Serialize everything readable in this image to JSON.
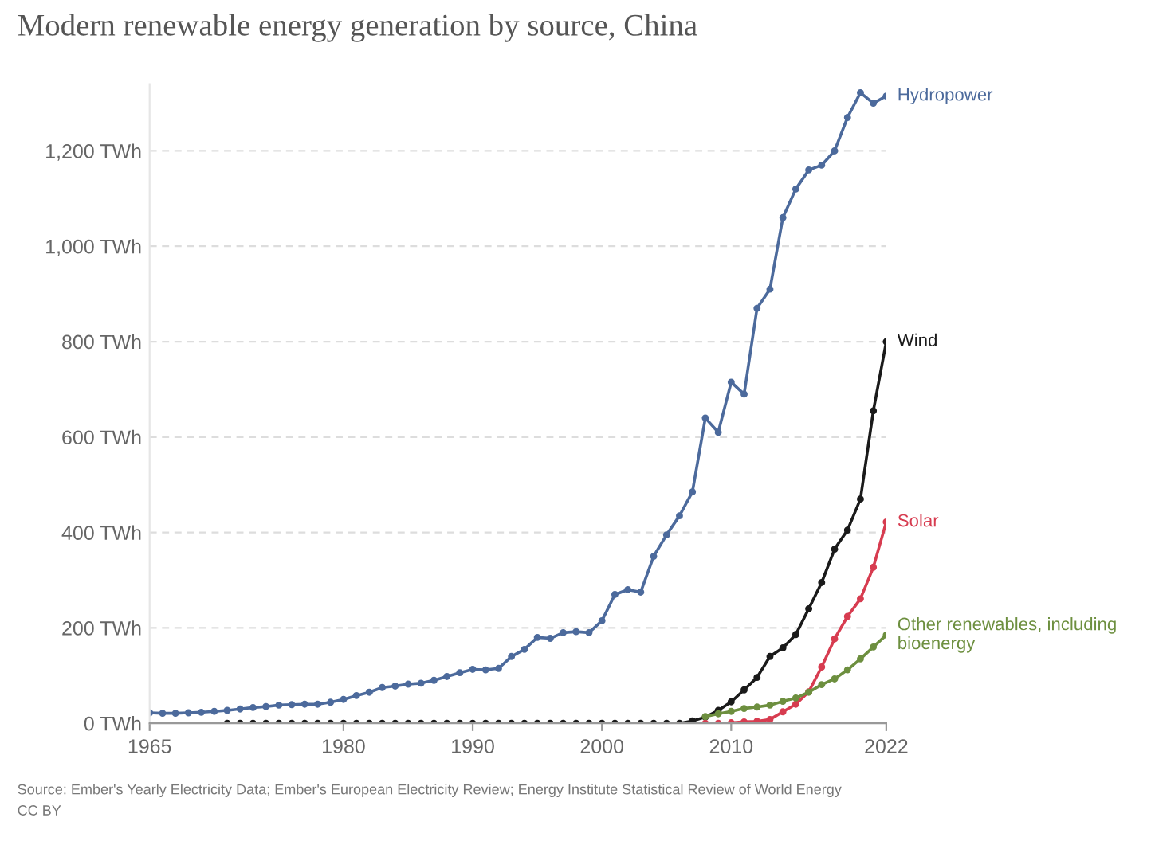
{
  "chart_data": {
    "type": "line",
    "title": "Modern renewable energy generation by source, China",
    "x": [
      1965,
      1966,
      1967,
      1968,
      1969,
      1970,
      1971,
      1972,
      1973,
      1974,
      1975,
      1976,
      1977,
      1978,
      1979,
      1980,
      1981,
      1982,
      1983,
      1984,
      1985,
      1986,
      1987,
      1988,
      1989,
      1990,
      1991,
      1992,
      1993,
      1994,
      1995,
      1996,
      1997,
      1998,
      1999,
      2000,
      2001,
      2002,
      2003,
      2004,
      2005,
      2006,
      2007,
      2008,
      2009,
      2010,
      2011,
      2012,
      2013,
      2014,
      2015,
      2016,
      2017,
      2018,
      2019,
      2020,
      2021,
      2022
    ],
    "series": [
      {
        "name": "Hydropower",
        "color": "#4c6a9c",
        "values": [
          22,
          21,
          21,
          22,
          23,
          25,
          27,
          30,
          33,
          35,
          38,
          39,
          40,
          40,
          44,
          50,
          58,
          65,
          75,
          78,
          82,
          84,
          90,
          98,
          106,
          113,
          112,
          115,
          140,
          155,
          180,
          178,
          190,
          192,
          190,
          215,
          270,
          280,
          275,
          350,
          395,
          435,
          485,
          640,
          610,
          715,
          690,
          870,
          910,
          1060,
          1120,
          1160,
          1170,
          1200,
          1270,
          1322,
          1300,
          1315
        ]
      },
      {
        "name": "Wind",
        "color": "#1a1a1a",
        "x": [
          1971,
          1972,
          1973,
          1974,
          1975,
          1976,
          1977,
          1978,
          1979,
          1980,
          1981,
          1982,
          1983,
          1984,
          1985,
          1986,
          1987,
          1988,
          1989,
          1990,
          1991,
          1992,
          1993,
          1994,
          1995,
          1996,
          1997,
          1998,
          1999,
          2000,
          2001,
          2002,
          2003,
          2004,
          2005,
          2006,
          2007,
          2008,
          2009,
          2010,
          2011,
          2012,
          2013,
          2014,
          2015,
          2016,
          2017,
          2018,
          2019,
          2020,
          2021,
          2022
        ],
        "values": [
          0,
          0,
          0,
          0,
          0,
          0,
          0,
          0,
          0,
          0,
          0,
          0,
          0,
          0,
          0,
          0,
          0,
          0,
          0,
          0,
          0,
          0,
          0,
          0,
          0,
          0,
          0,
          0,
          0,
          0,
          0,
          0,
          0,
          0,
          0,
          0,
          5,
          13,
          27,
          45,
          70,
          96,
          140,
          158,
          186,
          240,
          295,
          365,
          405,
          470,
          655,
          800
        ]
      },
      {
        "name": "Solar",
        "color": "#d73c50",
        "x": [
          2008,
          2009,
          2010,
          2011,
          2012,
          2013,
          2014,
          2015,
          2016,
          2017,
          2018,
          2019,
          2020,
          2021,
          2022
        ],
        "values": [
          0,
          0,
          1,
          3,
          4,
          8,
          24,
          40,
          66,
          118,
          177,
          224,
          261,
          327,
          422
        ]
      },
      {
        "name": "Other renewables, including bioenergy",
        "color": "#6d8f3f",
        "x": [
          2008,
          2009,
          2010,
          2011,
          2012,
          2013,
          2014,
          2015,
          2016,
          2017,
          2018,
          2019,
          2020,
          2021,
          2022
        ],
        "values": [
          14,
          20,
          25,
          31,
          34,
          38,
          46,
          53,
          65,
          81,
          93,
          112,
          135,
          160,
          185
        ]
      }
    ],
    "xlim": [
      1965,
      2022
    ],
    "xticks": [
      1965,
      1980,
      1990,
      2000,
      2010,
      2022
    ],
    "yticks": [
      {
        "value": 0,
        "label": "0 TWh"
      },
      {
        "value": 200,
        "label": "200 TWh"
      },
      {
        "value": 400,
        "label": "400 TWh"
      },
      {
        "value": 600,
        "label": "600 TWh"
      },
      {
        "value": 800,
        "label": "800 TWh"
      },
      {
        "value": 1000,
        "label": "1,000 TWh"
      },
      {
        "value": 1200,
        "label": "1,200 TWh"
      }
    ],
    "ylim": [
      0,
      1340
    ],
    "grid": "y",
    "marker": "circle",
    "line_style": "solid",
    "annotations": [
      "Source: Ember's Yearly Electricity Data; Ember's European Electricity Review; Energy Institute Statistical Review of World Energy",
      "CC BY"
    ]
  }
}
